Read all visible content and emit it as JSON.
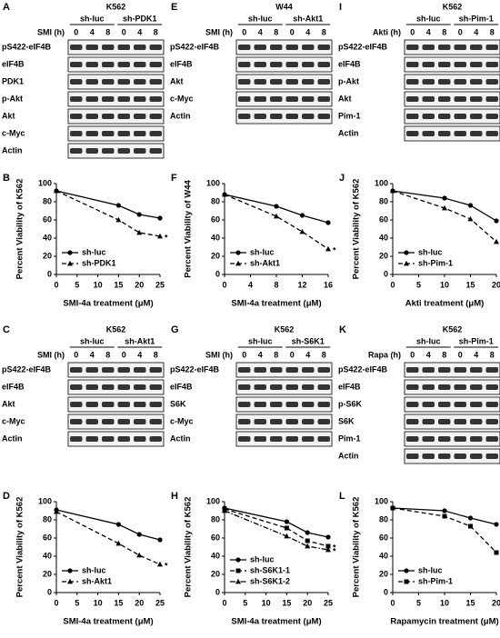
{
  "blots": [
    {
      "label": "A",
      "cell": "K562",
      "treatment": "SMI (h)",
      "groups": [
        "sh-luc",
        "sh-PDK1"
      ],
      "times": [
        0,
        4,
        8
      ],
      "rows": [
        "pS422-eIF4B",
        "eIF4B",
        "PDK1",
        "p-Akt",
        "Akt",
        "c-Myc",
        "Actin"
      ]
    },
    {
      "label": "E",
      "cell": "W44",
      "treatment": "SMI (h)",
      "groups": [
        "sh-luc",
        "sh-Akt1"
      ],
      "times": [
        0,
        4,
        8
      ],
      "rows": [
        "pS422-eIF4B",
        "eIF4B",
        "Akt",
        "c-Myc",
        "Actin"
      ]
    },
    {
      "label": "I",
      "cell": "K562",
      "treatment": "Akti (h)",
      "groups": [
        "sh-luc",
        "sh-Pim-1"
      ],
      "times": [
        0,
        4,
        8
      ],
      "rows": [
        "pS422-eIF4B",
        "eIF4B",
        "p-Akt",
        "Akt",
        "Pim-1",
        "Actin"
      ]
    },
    {
      "label": "C",
      "cell": "K562",
      "treatment": "SMI (h)",
      "groups": [
        "sh-luc",
        "sh-Akt1"
      ],
      "times": [
        0,
        4,
        8
      ],
      "rows": [
        "pS422-eIF4B",
        "eIF4B",
        "Akt",
        "c-Myc",
        "Actin"
      ]
    },
    {
      "label": "G",
      "cell": "K562",
      "treatment": "SMI (h)",
      "groups": [
        "sh-luc",
        "sh-S6K1"
      ],
      "times": [
        0,
        4,
        8
      ],
      "rows": [
        "pS422-eIF4B",
        "eIF4B",
        "S6K",
        "c-Myc",
        "Actin"
      ]
    },
    {
      "label": "K",
      "cell": "K562",
      "treatment": "Rapa (h)",
      "groups": [
        "sh-luc",
        "sh-Pim-1"
      ],
      "times": [
        0,
        4,
        8
      ],
      "rows": [
        "pS422-eIF4B",
        "eIF4B",
        "p-S6K",
        "S6K",
        "Pim-1",
        "Actin"
      ]
    }
  ],
  "chart_data": [
    {
      "type": "line",
      "label": "B",
      "ylabel": "Percent Viability of K562",
      "xlabel": "SMI-4a treatment (μM)",
      "x": [
        0,
        15,
        20,
        25
      ],
      "xlim": [
        0,
        25
      ],
      "xticks": [
        0,
        5,
        10,
        15,
        20,
        25
      ],
      "ylim": [
        0,
        100
      ],
      "yticks": [
        0,
        20,
        40,
        60,
        80,
        100
      ],
      "series": [
        {
          "name": "sh-luc",
          "color": "#000000",
          "marker": "circle",
          "dash": "solid",
          "values": [
            92,
            76,
            66,
            62
          ]
        },
        {
          "name": "sh-PDK1",
          "color": "#000000",
          "marker": "triangle",
          "dash": "dashed",
          "values": [
            92,
            60,
            46,
            42
          ],
          "note": "*"
        }
      ]
    },
    {
      "type": "line",
      "label": "F",
      "ylabel": "Percent Viability of W44",
      "xlabel": "SMI-4a treatment (μM)",
      "x": [
        0,
        8,
        12,
        16
      ],
      "xlim": [
        0,
        16
      ],
      "xticks": [
        0,
        4,
        8,
        12,
        16
      ],
      "ylim": [
        0,
        100
      ],
      "yticks": [
        0,
        20,
        40,
        60,
        80,
        100
      ],
      "series": [
        {
          "name": "sh-luc",
          "color": "#000000",
          "marker": "circle",
          "dash": "solid",
          "values": [
            88,
            75,
            65,
            57
          ]
        },
        {
          "name": "sh-Akt1",
          "color": "#000000",
          "marker": "triangle",
          "dash": "dashed",
          "values": [
            88,
            64,
            47,
            28
          ],
          "note": "*"
        }
      ]
    },
    {
      "type": "line",
      "label": "J",
      "ylabel": "Percent Viability of K562",
      "xlabel": "Akti treatment (μM)",
      "x": [
        0,
        10,
        15,
        20
      ],
      "xlim": [
        0,
        20
      ],
      "xticks": [
        0,
        5,
        10,
        15,
        20
      ],
      "ylim": [
        0,
        100
      ],
      "yticks": [
        0,
        20,
        40,
        60,
        80,
        100
      ],
      "series": [
        {
          "name": "sh-luc",
          "color": "#000000",
          "marker": "circle",
          "dash": "solid",
          "values": [
            92,
            84,
            76,
            59
          ]
        },
        {
          "name": "sh-Pim-1",
          "color": "#000000",
          "marker": "triangle",
          "dash": "dashed",
          "values": [
            92,
            73,
            61,
            36
          ],
          "note": "*"
        }
      ]
    },
    {
      "type": "line",
      "label": "D",
      "ylabel": "Percent Viability of K562",
      "xlabel": "SMI-4a treatment (μM)",
      "x": [
        0,
        15,
        20,
        25
      ],
      "xlim": [
        0,
        25
      ],
      "xticks": [
        0,
        5,
        10,
        15,
        20,
        25
      ],
      "ylim": [
        0,
        100
      ],
      "yticks": [
        0,
        20,
        40,
        60,
        80,
        100
      ],
      "series": [
        {
          "name": "sh-luc",
          "color": "#000000",
          "marker": "circle",
          "dash": "solid",
          "values": [
            91,
            75,
            64,
            58
          ]
        },
        {
          "name": "sh-Akt1",
          "color": "#000000",
          "marker": "triangle",
          "dash": "dashed",
          "values": [
            89,
            54,
            41,
            31
          ],
          "note": "*"
        }
      ]
    },
    {
      "type": "line",
      "label": "H",
      "ylabel": "Percent Viability of K562",
      "xlabel": "SMI-4a treatment (μM)",
      "x": [
        0,
        15,
        20,
        25
      ],
      "xlim": [
        0,
        25
      ],
      "xticks": [
        0,
        5,
        10,
        15,
        20,
        25
      ],
      "ylim": [
        0,
        100
      ],
      "yticks": [
        0,
        20,
        40,
        60,
        80,
        100
      ],
      "series": [
        {
          "name": "sh-luc",
          "color": "#000000",
          "marker": "circle",
          "dash": "solid",
          "values": [
            93,
            78,
            66,
            61
          ]
        },
        {
          "name": "sh-S6K1-1",
          "color": "#000000",
          "marker": "square",
          "dash": "dashed",
          "values": [
            92,
            71,
            57,
            51
          ],
          "note": "*"
        },
        {
          "name": "sh-S6K1-2",
          "color": "#000000",
          "marker": "triangle",
          "dash": "dashdot",
          "values": [
            90,
            62,
            51,
            47
          ],
          "note": "*"
        }
      ]
    },
    {
      "type": "line",
      "label": "L",
      "ylabel": "Percent Viability of K562",
      "xlabel": "Rapamycin treatment (μM)",
      "x": [
        0,
        10,
        15,
        20
      ],
      "xlim": [
        0,
        20
      ],
      "xticks": [
        0,
        5,
        10,
        15,
        20
      ],
      "ylim": [
        0,
        100
      ],
      "yticks": [
        0,
        20,
        40,
        60,
        80,
        100
      ],
      "series": [
        {
          "name": "sh-luc",
          "color": "#000000",
          "marker": "circle",
          "dash": "solid",
          "values": [
            93,
            90,
            82,
            75
          ]
        },
        {
          "name": "sh-Pim-1",
          "color": "#000000",
          "marker": "square",
          "dash": "dashed",
          "values": [
            93,
            84,
            73,
            44
          ],
          "note": "**"
        }
      ]
    }
  ]
}
